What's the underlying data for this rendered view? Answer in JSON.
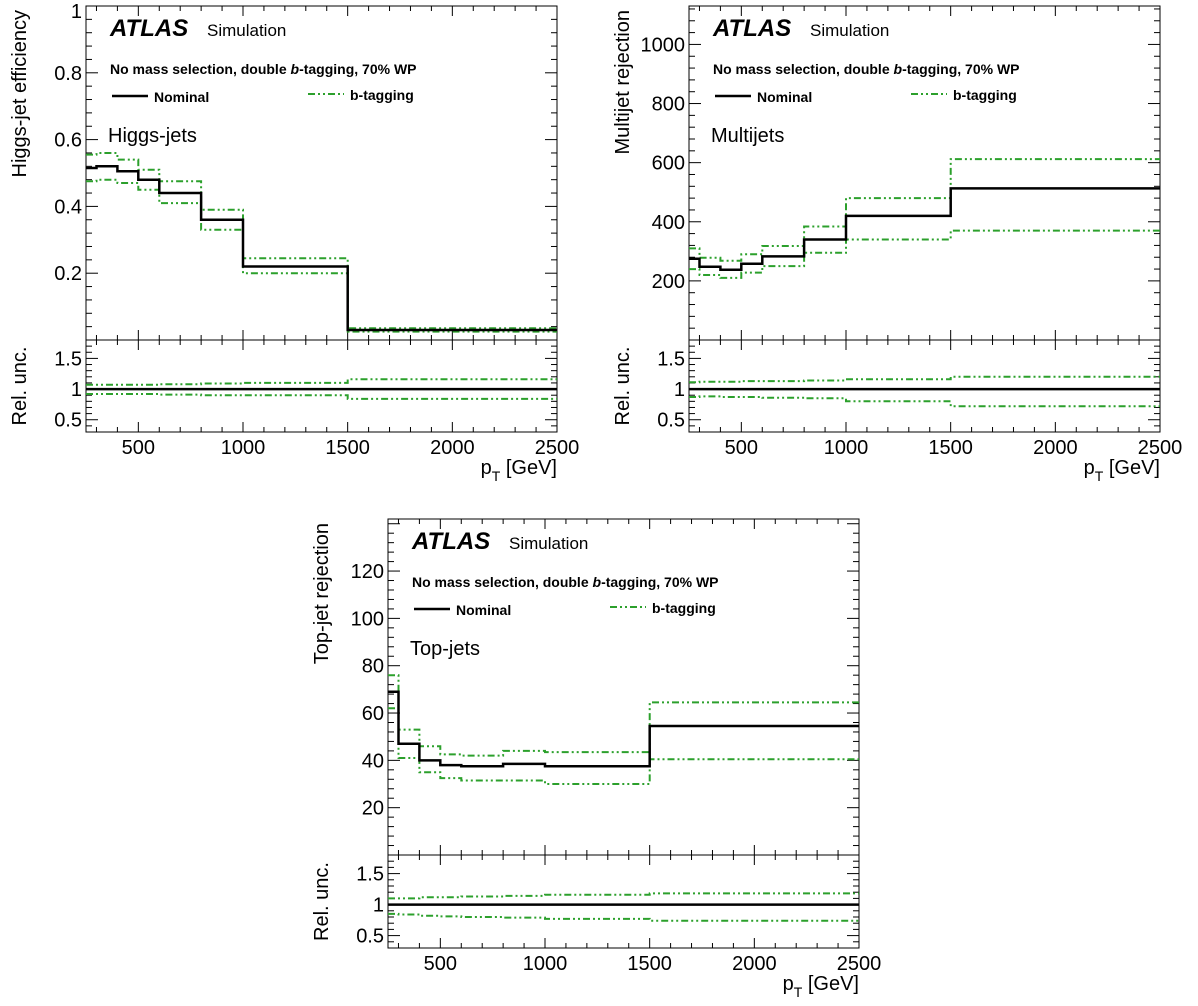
{
  "colors": {
    "nominal": "#000000",
    "btag": "#2ca02c"
  },
  "panels": [
    {
      "atlas": "ATLAS",
      "simulation": "Simulation",
      "selection_pre": "No mass selection, double ",
      "selection_b": "b",
      "selection_post": "-tagging, 70% WP",
      "legend_nominal": "Nominal",
      "legend_btag": "b-tagging",
      "category": "Higgs-jets",
      "ylabel": "Higgs-jet efficiency",
      "ratio_ylabel": "Rel. unc.",
      "xlabel_main": "p",
      "xlabel_sub": "T",
      "xlabel_unit": " [GeV]"
    },
    {
      "atlas": "ATLAS",
      "simulation": "Simulation",
      "selection_pre": "No mass selection, double ",
      "selection_b": "b",
      "selection_post": "-tagging, 70% WP",
      "legend_nominal": "Nominal",
      "legend_btag": "b-tagging",
      "category": "Multijets",
      "ylabel": "Multijet rejection",
      "ratio_ylabel": "Rel. unc.",
      "xlabel_main": "p",
      "xlabel_sub": "T",
      "xlabel_unit": " [GeV]"
    },
    {
      "atlas": "ATLAS",
      "simulation": "Simulation",
      "selection_pre": "No mass selection, double ",
      "selection_b": "b",
      "selection_post": "-tagging, 70% WP",
      "legend_nominal": "Nominal",
      "legend_btag": "b-tagging",
      "category": "Top-jets",
      "ylabel": "Top-jet rejection",
      "ratio_ylabel": "Rel. unc.",
      "xlabel_main": "p",
      "xlabel_sub": "T",
      "xlabel_unit": " [GeV]"
    }
  ],
  "chart_data": [
    {
      "type": "line",
      "step": true,
      "bin_edges": [
        250,
        300,
        400,
        500,
        600,
        800,
        1000,
        1500,
        2500
      ],
      "series": [
        {
          "name": "Nominal",
          "values": [
            0.515,
            0.52,
            0.505,
            0.48,
            0.44,
            0.36,
            0.22,
            0.03
          ]
        },
        {
          "name": "b-tagging",
          "band": "up",
          "values": [
            0.555,
            0.56,
            0.54,
            0.51,
            0.475,
            0.39,
            0.245,
            0.035
          ]
        },
        {
          "name": "b-tagging",
          "band": "down",
          "values": [
            0.475,
            0.48,
            0.47,
            0.45,
            0.41,
            0.33,
            0.2,
            0.025
          ]
        }
      ],
      "ratio": {
        "ylim": [
          0.3,
          1.8
        ],
        "yticks": [
          0.5,
          1,
          1.5
        ],
        "series": [
          {
            "name": "Nominal",
            "values": [
              1,
              1,
              1,
              1,
              1,
              1,
              1,
              1
            ]
          },
          {
            "name": "b-tagging",
            "band": "up",
            "values": [
              1.07,
              1.07,
              1.07,
              1.07,
              1.08,
              1.09,
              1.1,
              1.16
            ]
          },
          {
            "name": "b-tagging",
            "band": "down",
            "values": [
              0.92,
              0.92,
              0.92,
              0.92,
              0.91,
              0.9,
              0.9,
              0.84
            ]
          }
        ]
      },
      "ylabel": "Higgs-jet efficiency",
      "xlabel": "p_T [GeV]",
      "xlim": [
        250,
        2500
      ],
      "ylim": [
        0,
        1.0
      ],
      "xticks": [
        500,
        1000,
        1500,
        2000,
        2500
      ],
      "yticks": [
        0.2,
        0.4,
        0.6,
        0.8
      ],
      "ytick_labels": [
        "0.2",
        "0.4",
        "0.6",
        "0.8"
      ],
      "yhead_label": "1",
      "grid": false
    },
    {
      "type": "line",
      "step": true,
      "bin_edges": [
        250,
        300,
        400,
        500,
        600,
        800,
        1000,
        1500,
        2500
      ],
      "series": [
        {
          "name": "Nominal",
          "values": [
            275,
            248,
            238,
            258,
            283,
            340,
            420,
            513
          ]
        },
        {
          "name": "b-tagging",
          "band": "up",
          "values": [
            310,
            278,
            268,
            290,
            318,
            384,
            480,
            612
          ]
        },
        {
          "name": "b-tagging",
          "band": "down",
          "values": [
            240,
            220,
            210,
            228,
            250,
            295,
            340,
            370
          ]
        }
      ],
      "ratio": {
        "ylim": [
          0.3,
          1.8
        ],
        "yticks": [
          0.5,
          1,
          1.5
        ],
        "series": [
          {
            "name": "Nominal",
            "values": [
              1,
              1,
              1,
              1,
              1,
              1,
              1,
              1
            ]
          },
          {
            "name": "b-tagging",
            "band": "up",
            "values": [
              1.11,
              1.12,
              1.12,
              1.13,
              1.13,
              1.14,
              1.16,
              1.2
            ]
          },
          {
            "name": "b-tagging",
            "band": "down",
            "values": [
              0.87,
              0.88,
              0.87,
              0.87,
              0.86,
              0.85,
              0.8,
              0.72
            ]
          }
        ]
      },
      "ylabel": "Multijet rejection",
      "xlabel": "p_T [GeV]",
      "xlim": [
        250,
        2500
      ],
      "ylim": [
        0,
        1130
      ],
      "xticks": [
        500,
        1000,
        1500,
        2000,
        2500
      ],
      "yticks": [
        200,
        400,
        600,
        800,
        1000
      ],
      "ytick_labels": [
        "200",
        "400",
        "600",
        "800",
        "1000"
      ],
      "grid": false
    },
    {
      "type": "line",
      "step": true,
      "bin_edges": [
        250,
        300,
        400,
        500,
        600,
        800,
        1000,
        1500,
        2500
      ],
      "series": [
        {
          "name": "Nominal",
          "values": [
            69,
            47,
            40,
            38,
            37.5,
            38.5,
            37.5,
            54.5
          ]
        },
        {
          "name": "b-tagging",
          "band": "up",
          "values": [
            76,
            53,
            46,
            42.5,
            42,
            44,
            43.5,
            64.5
          ]
        },
        {
          "name": "b-tagging",
          "band": "down",
          "values": [
            62,
            41,
            35,
            32.5,
            31.5,
            31.5,
            30,
            40.5
          ]
        }
      ],
      "ratio": {
        "ylim": [
          0.3,
          1.8
        ],
        "yticks": [
          0.5,
          1,
          1.5
        ],
        "series": [
          {
            "name": "Nominal",
            "values": [
              1,
              1,
              1,
              1,
              1,
              1,
              1,
              1
            ]
          },
          {
            "name": "b-tagging",
            "band": "up",
            "values": [
              1.1,
              1.1,
              1.12,
              1.12,
              1.13,
              1.14,
              1.16,
              1.18
            ]
          },
          {
            "name": "b-tagging",
            "band": "down",
            "values": [
              0.85,
              0.84,
              0.82,
              0.81,
              0.8,
              0.79,
              0.77,
              0.74
            ]
          }
        ]
      },
      "ylabel": "Top-jet rejection",
      "xlabel": "p_T [GeV]",
      "xlim": [
        250,
        2500
      ],
      "ylim": [
        0,
        142
      ],
      "xticks": [
        500,
        1000,
        1500,
        2000,
        2500
      ],
      "yticks": [
        20,
        40,
        60,
        80,
        100,
        120
      ],
      "ytick_labels": [
        "20",
        "40",
        "60",
        "80",
        "100",
        "120"
      ],
      "grid": false
    }
  ]
}
